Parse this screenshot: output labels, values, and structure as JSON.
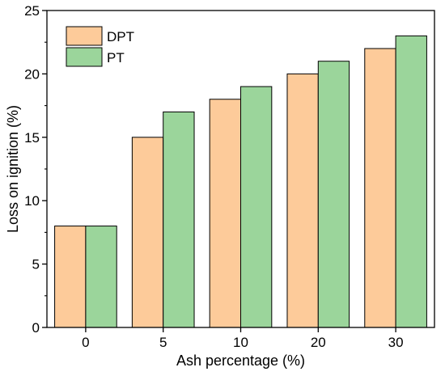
{
  "chart_data": {
    "type": "bar",
    "title": "",
    "xlabel": "Ash percentage (%)",
    "ylabel": "Loss on ignition (%)",
    "categories": [
      "0",
      "5",
      "10",
      "20",
      "30"
    ],
    "series": [
      {
        "name": "DPT",
        "values": [
          8,
          15,
          18,
          20,
          22
        ],
        "color": "#FDCB9A"
      },
      {
        "name": "PT",
        "values": [
          8,
          17,
          19,
          21,
          23
        ],
        "color": "#9BD59B"
      }
    ],
    "ylim": [
      0,
      25
    ],
    "yticks": [
      "0",
      "5",
      "10",
      "15",
      "20",
      "25"
    ],
    "grid": false,
    "legend_position": "top-left"
  }
}
